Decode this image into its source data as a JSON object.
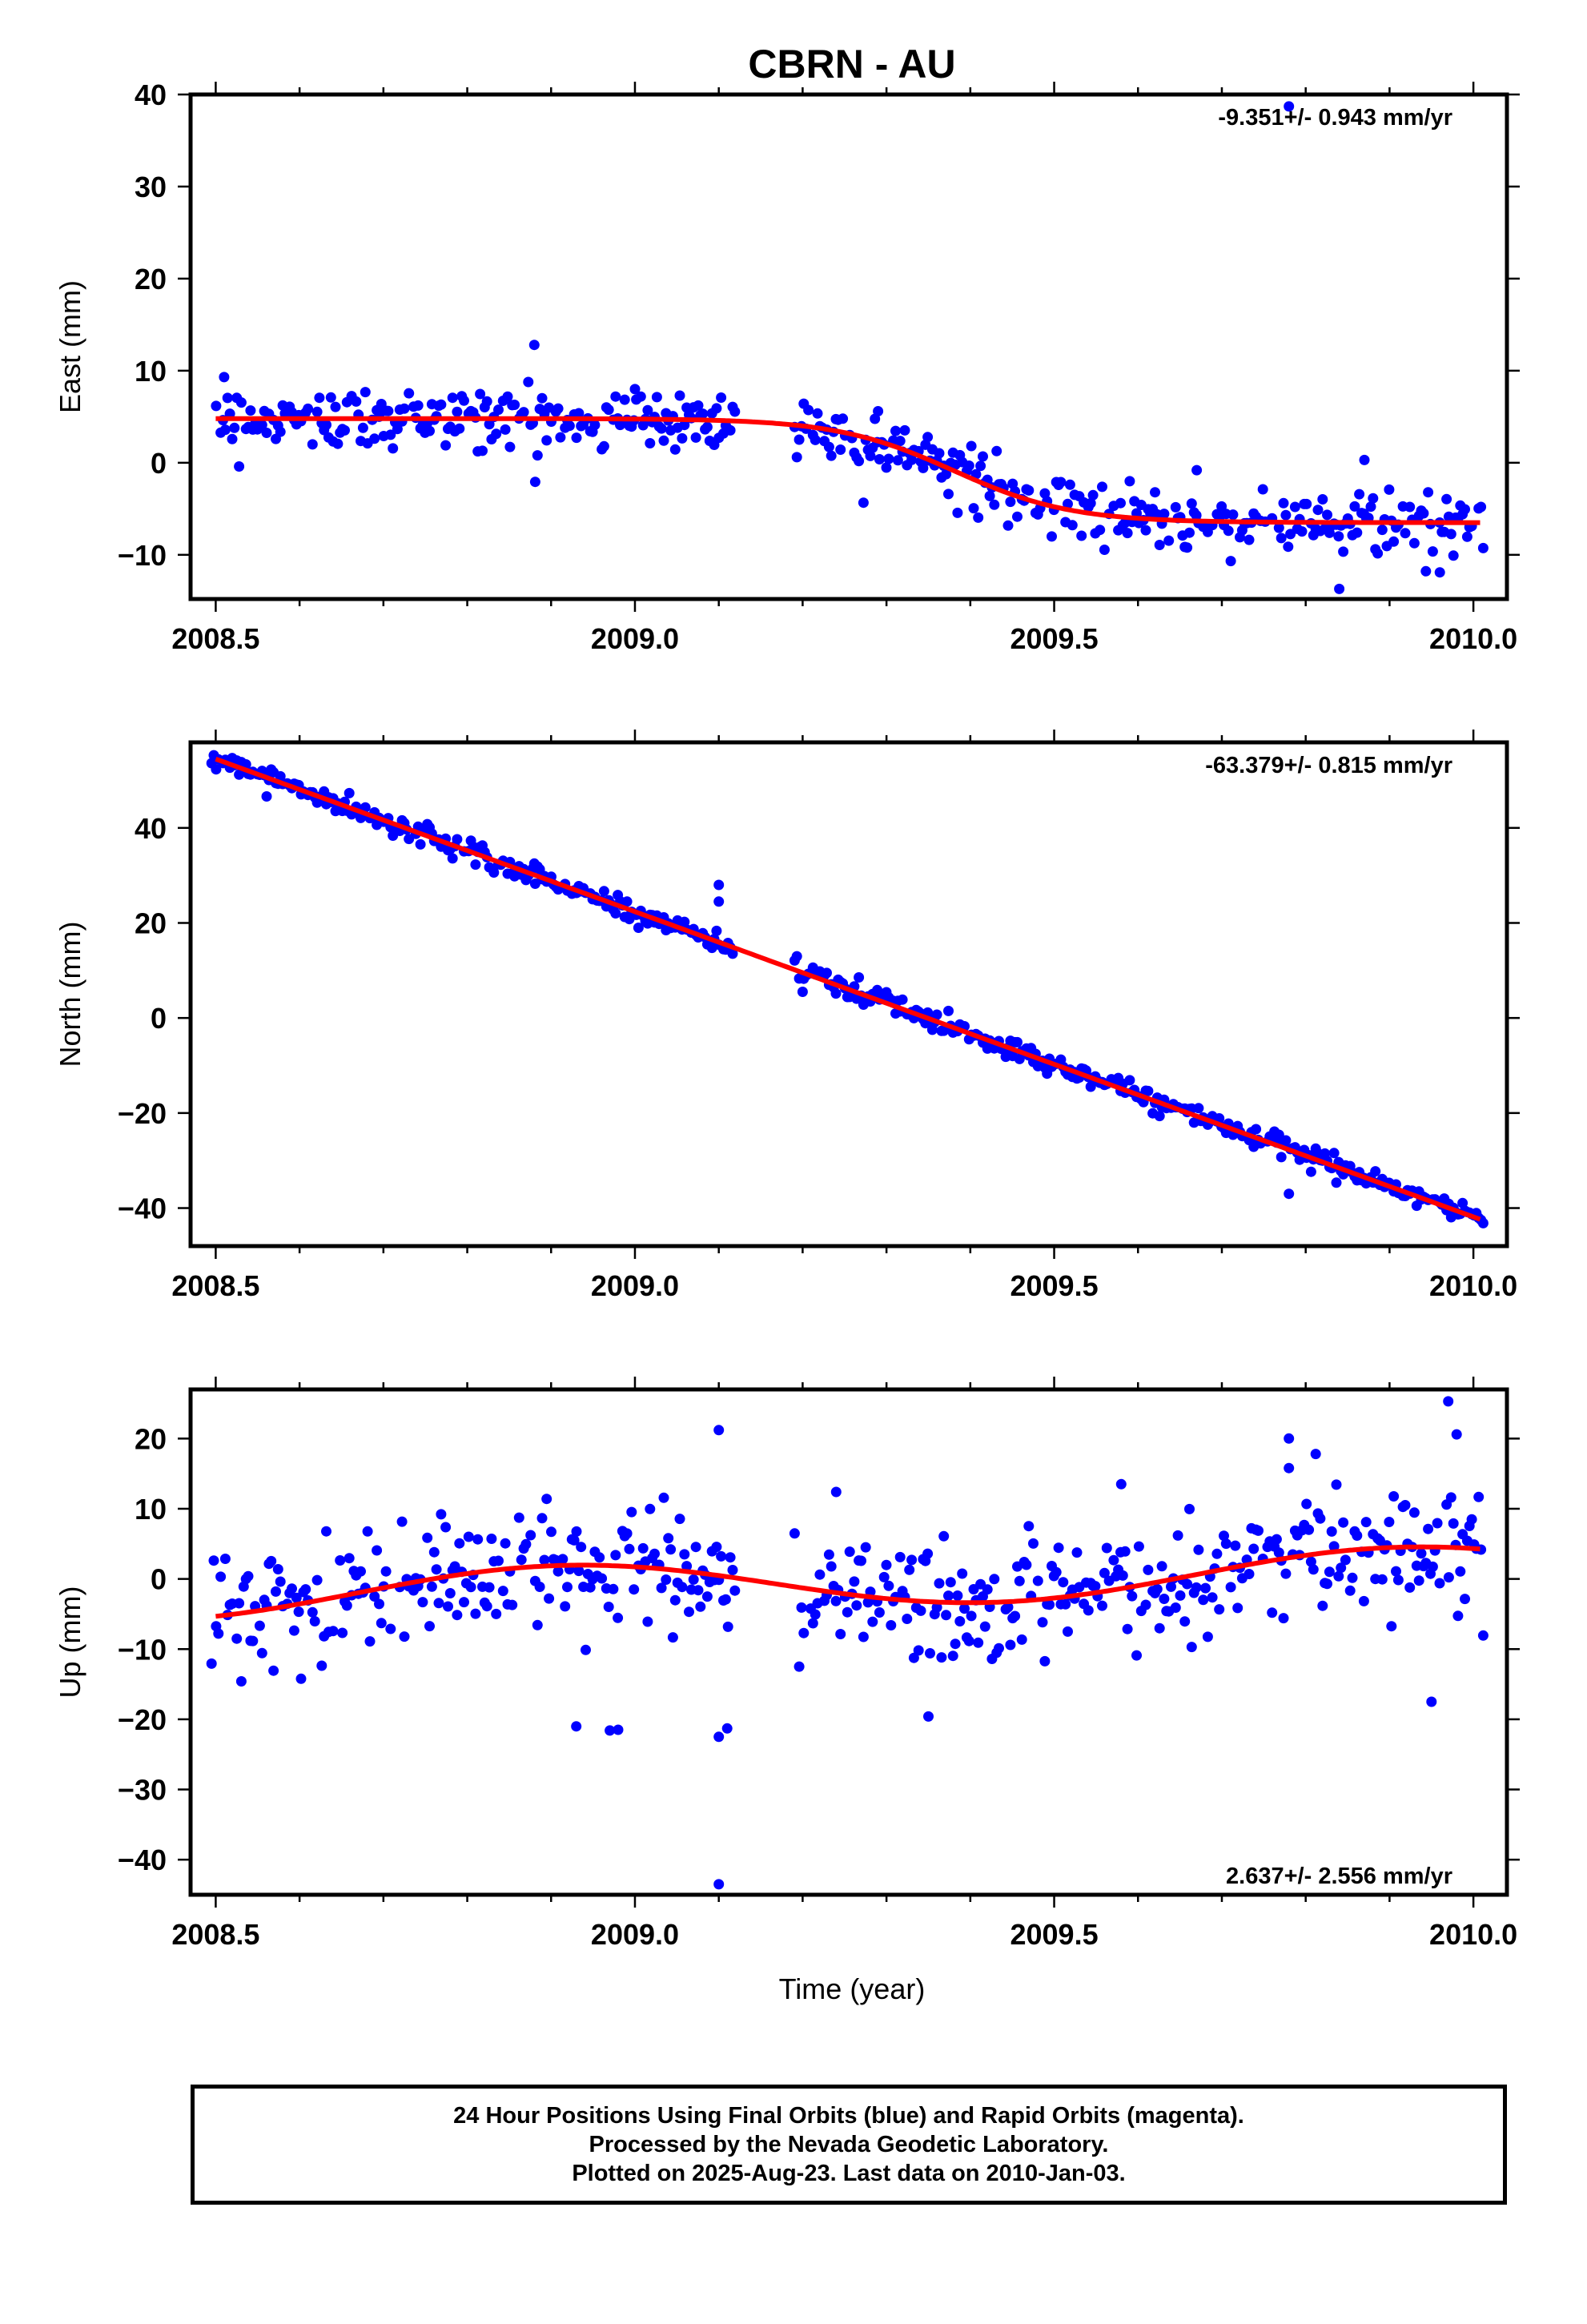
{
  "chart_data": {
    "title": "CBRN - AU",
    "type": "scatter",
    "xlabel": "Time (year)",
    "xlim": [
      2008.47,
      2010.04
    ],
    "xticks": [
      "2008.5",
      "2009.0",
      "2009.5",
      "2010.0"
    ],
    "xtick_values": [
      2008.5,
      2009.0,
      2009.5,
      2010.0
    ],
    "colors": {
      "points": "#0000ff",
      "fit": "#ff0000"
    },
    "panels": [
      {
        "ylabel": "East (mm)",
        "ylim": [
          -14.8,
          40
        ],
        "yticks": [
          40,
          30,
          20,
          10,
          0,
          -10
        ],
        "ytick_labels": [
          "40",
          "30",
          "20",
          "10",
          "0",
          "−10"
        ],
        "rate_text": "-9.351+/- 0.943 mm/yr",
        "rate_position": "top-right",
        "model": {
          "type": "logistic",
          "start": 4.8,
          "end": -6.5,
          "center": 2009.38,
          "scale": 0.07,
          "drift": -1.2,
          "seasonal_amp": 0
        },
        "noise_std": 1.7,
        "gaps": [
          [
            2009.12,
            2009.19
          ]
        ],
        "outliers": [
          [
            2008.51,
            9.3
          ],
          [
            2008.88,
            12.8
          ],
          [
            2009.0,
            8.0
          ],
          [
            2009.29,
            5.6
          ],
          [
            2009.78,
            38.7
          ],
          [
            2009.84,
            -13.7
          ],
          [
            2009.96,
            -11.9
          ],
          [
            2009.87,
            0.3
          ],
          [
            2009.67,
            -0.8
          ]
        ]
      },
      {
        "ylabel": "North (mm)",
        "ylim": [
          -48,
          58
        ],
        "yticks": [
          40,
          20,
          0,
          -20,
          -40
        ],
        "ytick_labels": [
          "40",
          "20",
          "0",
          "−20",
          "−40"
        ],
        "rate_text": "-63.379+/- 0.815 mm/yr",
        "rate_position": "top-right",
        "model": {
          "type": "linear",
          "start": 54.5,
          "end": -42.5
        },
        "noise_std": 1.1,
        "gaps": [
          [
            2009.12,
            2009.19
          ]
        ],
        "outliers": [
          [
            2009.1,
            28.0
          ],
          [
            2009.1,
            24.5
          ],
          [
            2008.88,
            32.5
          ],
          [
            2009.78,
            -37.0
          ],
          [
            2009.2,
            5.5
          ]
        ]
      },
      {
        "ylabel": "Up (mm)",
        "ylim": [
          -45,
          27
        ],
        "yticks": [
          20,
          10,
          0,
          -10,
          -20,
          -30,
          -40
        ],
        "ytick_labels": [
          "20",
          "10",
          "0",
          "−10",
          "−20",
          "−30",
          "−40"
        ],
        "rate_text": "2.637+/- 2.556 mm/yr",
        "rate_position": "bottom-right",
        "model": {
          "type": "seasonal",
          "mean": -0.5,
          "trend": 2.6,
          "amp": 3.3,
          "phase": 2008.45,
          "period": 1.0
        },
        "noise_std": 4.6,
        "gaps": [
          [
            2009.12,
            2009.19
          ]
        ],
        "outliers": [
          [
            2009.1,
            21.2
          ],
          [
            2009.1,
            -43.5
          ],
          [
            2009.1,
            -22.5
          ],
          [
            2009.11,
            -21.3
          ],
          [
            2008.93,
            -21.0
          ],
          [
            2008.97,
            -21.6
          ],
          [
            2008.98,
            -21.5
          ],
          [
            2009.35,
            -19.6
          ],
          [
            2009.97,
            25.3
          ],
          [
            2009.98,
            20.6
          ],
          [
            2009.78,
            20.0
          ],
          [
            2009.95,
            -17.5
          ],
          [
            2009.24,
            12.4
          ],
          [
            2009.58,
            13.5
          ],
          [
            2009.78,
            15.8
          ]
        ]
      }
    ]
  },
  "footer": {
    "line1": "24 Hour Positions Using Final Orbits (blue) and Rapid Orbits (magenta).",
    "line2": "Processed by the Nevada Geodetic Laboratory.",
    "line3": "Plotted on 2025-Aug-23. Last data on 2010-Jan-03."
  }
}
